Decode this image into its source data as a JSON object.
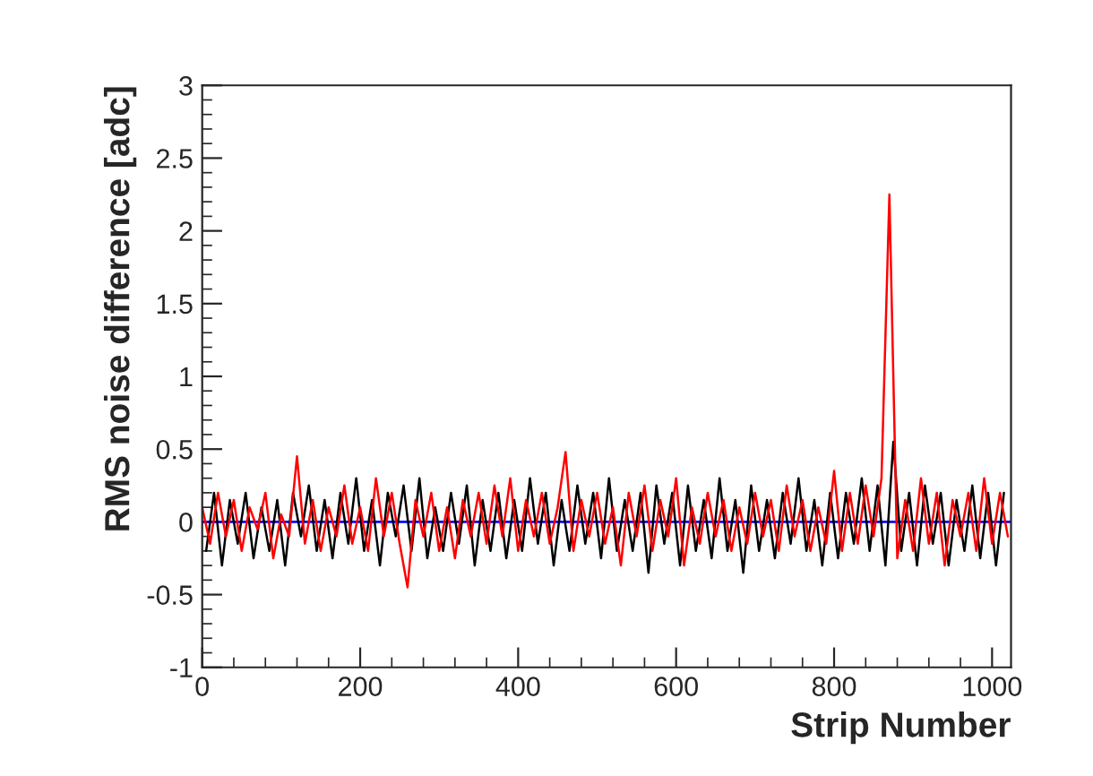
{
  "chart_data": {
    "type": "line",
    "xlabel": "Strip Number",
    "ylabel": "RMS noise difference [adc]",
    "xlim": [
      0,
      1024
    ],
    "ylim": [
      -1,
      3
    ],
    "xticks": [
      0,
      200,
      400,
      600,
      800,
      1000
    ],
    "yticks": [
      -1,
      {
        "value": -0.5,
        "label": "-0.5"
      },
      0,
      0.5,
      1,
      1.5,
      2,
      2.5,
      3
    ],
    "grid": false,
    "legend": false,
    "ref_lines": [
      {
        "axis": "y",
        "value": 0,
        "color": "#0000ff"
      }
    ],
    "series": [
      {
        "color": "#000000",
        "x": [
          5,
          15,
          25,
          35,
          45,
          55,
          65,
          75,
          85,
          95,
          105,
          115,
          125,
          135,
          145,
          155,
          165,
          175,
          185,
          195,
          205,
          215,
          225,
          235,
          245,
          255,
          265,
          275,
          285,
          295,
          305,
          315,
          325,
          335,
          345,
          355,
          365,
          375,
          385,
          395,
          405,
          415,
          425,
          435,
          445,
          455,
          465,
          475,
          485,
          495,
          505,
          515,
          525,
          535,
          545,
          555,
          565,
          575,
          585,
          595,
          605,
          615,
          625,
          635,
          645,
          655,
          665,
          675,
          685,
          695,
          705,
          715,
          725,
          735,
          745,
          755,
          765,
          775,
          785,
          795,
          805,
          815,
          825,
          835,
          845,
          855,
          865,
          875,
          885,
          895,
          905,
          915,
          925,
          935,
          945,
          955,
          965,
          975,
          985,
          995,
          1005,
          1015
        ],
        "values": [
          -0.2,
          0.2,
          -0.3,
          0.15,
          -0.15,
          0.2,
          -0.25,
          0.1,
          -0.2,
          0.15,
          -0.3,
          0.2,
          -0.1,
          0.25,
          -0.2,
          0.15,
          -0.25,
          0.2,
          -0.15,
          0.3,
          -0.2,
          0.15,
          -0.3,
          0.2,
          -0.1,
          0.25,
          -0.2,
          0.3,
          -0.25,
          0.1,
          -0.2,
          0.2,
          -0.15,
          0.25,
          -0.3,
          0.15,
          -0.2,
          0.2,
          -0.25,
          0.15,
          -0.2,
          0.3,
          -0.15,
          0.2,
          -0.3,
          0.15,
          -0.2,
          0.25,
          -0.15,
          0.2,
          -0.25,
          0.3,
          -0.2,
          0.15,
          -0.2,
          0.2,
          -0.35,
          0.25,
          -0.15,
          0.2,
          -0.3,
          0.25,
          -0.2,
          0.15,
          -0.25,
          0.3,
          -0.2,
          0.15,
          -0.35,
          0.25,
          -0.2,
          0.15,
          -0.25,
          0.2,
          -0.15,
          0.3,
          -0.2,
          0.15,
          -0.3,
          0.2,
          -0.25,
          0.2,
          -0.15,
          0.3,
          -0.2,
          0.25,
          -0.3,
          0.55,
          -0.2,
          0.2,
          -0.3,
          0.25,
          -0.15,
          0.2,
          -0.3,
          0.15,
          -0.2,
          0.25,
          -0.25,
          0.2,
          -0.3,
          0.2
        ]
      },
      {
        "color": "#ff0000",
        "x": [
          0,
          10,
          20,
          30,
          40,
          50,
          60,
          70,
          80,
          90,
          100,
          110,
          120,
          130,
          140,
          150,
          160,
          170,
          180,
          190,
          200,
          210,
          220,
          230,
          240,
          250,
          260,
          270,
          280,
          290,
          300,
          310,
          320,
          330,
          340,
          350,
          360,
          370,
          380,
          390,
          400,
          410,
          420,
          430,
          440,
          450,
          460,
          470,
          480,
          490,
          500,
          510,
          520,
          530,
          540,
          550,
          560,
          570,
          580,
          590,
          600,
          610,
          620,
          630,
          640,
          650,
          660,
          670,
          680,
          690,
          700,
          710,
          720,
          730,
          740,
          750,
          760,
          770,
          780,
          790,
          800,
          810,
          820,
          830,
          840,
          850,
          860,
          870,
          880,
          890,
          900,
          910,
          920,
          930,
          940,
          950,
          960,
          970,
          980,
          990,
          1000,
          1010,
          1020
        ],
        "values": [
          0.1,
          -0.15,
          0.2,
          -0.1,
          0.15,
          -0.2,
          0.1,
          -0.05,
          0.2,
          -0.25,
          0.05,
          -0.1,
          0.45,
          -0.15,
          0.15,
          -0.2,
          0.1,
          -0.1,
          0.25,
          -0.15,
          0.1,
          -0.2,
          0.3,
          -0.1,
          0.2,
          -0.15,
          -0.45,
          0.15,
          -0.1,
          0.2,
          -0.2,
          0.1,
          -0.25,
          0.15,
          -0.1,
          0.2,
          -0.15,
          0.25,
          -0.1,
          0.3,
          -0.2,
          0.15,
          -0.1,
          0.2,
          -0.15,
          0.1,
          0.48,
          -0.2,
          0.15,
          -0.1,
          0.2,
          -0.15,
          0.1,
          -0.3,
          0.2,
          -0.1,
          0.25,
          -0.2,
          0.15,
          -0.1,
          0.3,
          -0.3,
          0.1,
          -0.15,
          0.2,
          -0.1,
          0.15,
          -0.2,
          0.1,
          -0.15,
          0.2,
          -0.1,
          0.15,
          -0.2,
          0.25,
          -0.1,
          0.15,
          -0.2,
          0.1,
          -0.15,
          0.35,
          -0.2,
          0.2,
          -0.15,
          0.25,
          -0.1,
          0.3,
          2.25,
          -0.25,
          0.15,
          -0.2,
          0.3,
          -0.15,
          0.2,
          -0.3,
          0.15,
          -0.1,
          0.2,
          -0.2,
          0.3,
          -0.15,
          0.2,
          -0.1
        ]
      }
    ]
  }
}
